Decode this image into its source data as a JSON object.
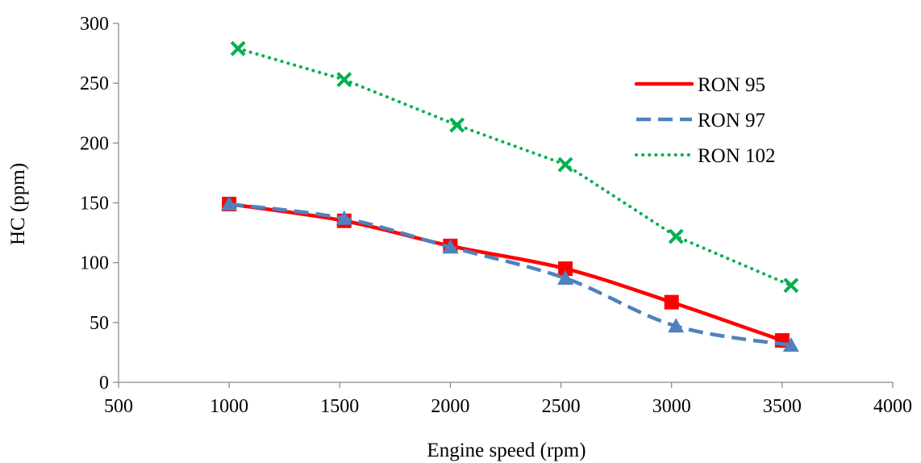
{
  "chart_data": {
    "type": "scatter",
    "title": "",
    "xlabel": "Engine speed (rpm)",
    "ylabel": "HC (ppm)",
    "xlim": [
      500,
      4000
    ],
    "ylim": [
      0,
      300
    ],
    "x_ticks": [
      500,
      1000,
      1500,
      2000,
      2500,
      3000,
      3500,
      4000
    ],
    "y_ticks": [
      0,
      50,
      100,
      150,
      200,
      250,
      300
    ],
    "x_tick_labels": [
      "500",
      "1000",
      "1500",
      "2000",
      "2500",
      "3000",
      "3500",
      "4000"
    ],
    "y_tick_labels": [
      "0",
      "50",
      "100",
      "150",
      "200",
      "250",
      "300"
    ],
    "grid": false,
    "legend_position": "top-right",
    "series": [
      {
        "name": "RON 95",
        "color": "#ff0000",
        "line_style": "solid",
        "marker": "square",
        "smooth": true,
        "x": [
          1000,
          1520,
          2000,
          2520,
          3000,
          3500
        ],
        "y": [
          149,
          135,
          114,
          95,
          67,
          35
        ]
      },
      {
        "name": "RON 97",
        "color": "#4f81bd",
        "line_style": "dashed",
        "marker": "triangle",
        "smooth": true,
        "x": [
          1000,
          1520,
          2000,
          2520,
          3020,
          3540
        ],
        "y": [
          149,
          137,
          113,
          87,
          47,
          31
        ]
      },
      {
        "name": "RON 102",
        "color": "#00b050",
        "line_style": "dotted",
        "marker": "x",
        "smooth": false,
        "x": [
          1040,
          1520,
          2030,
          2520,
          3020,
          3540
        ],
        "y": [
          279,
          253,
          215,
          182,
          122,
          81
        ]
      }
    ]
  }
}
